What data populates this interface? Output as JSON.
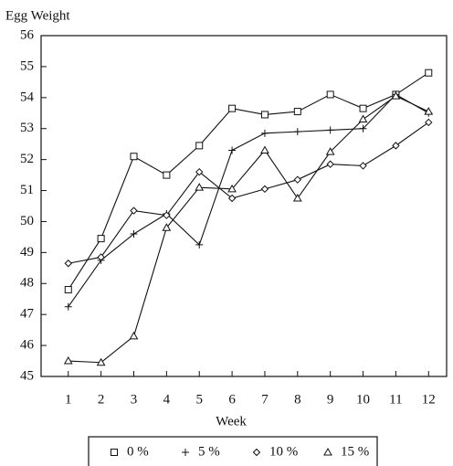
{
  "chart_data": {
    "type": "line",
    "y_label": "Egg Weight",
    "x_label": "Week",
    "x": [
      1,
      2,
      3,
      4,
      5,
      6,
      7,
      8,
      9,
      10,
      11,
      12
    ],
    "xlim": [
      0.17,
      12.55
    ],
    "xticks": [
      1,
      2,
      3,
      4,
      5,
      6,
      7,
      8,
      9,
      10,
      11,
      12
    ],
    "ylim": [
      45,
      56
    ],
    "yticks": [
      45,
      46,
      47,
      48,
      49,
      50,
      51,
      52,
      53,
      54,
      55,
      56
    ],
    "series": [
      {
        "name": "0 %",
        "color": "#111111",
        "marker": "square",
        "values": [
          47.8,
          49.45,
          52.1,
          51.5,
          52.45,
          53.65,
          53.45,
          53.55,
          54.1,
          53.65,
          54.1,
          54.8
        ]
      },
      {
        "name": "5 %",
        "color": "#111111",
        "marker": "plus",
        "values": [
          47.25,
          48.75,
          49.6,
          50.25,
          49.25,
          52.3,
          52.85,
          52.9,
          52.95,
          53.0,
          54.1,
          53.5
        ]
      },
      {
        "name": "10 %",
        "color": "#111111",
        "marker": "diamond",
        "values": [
          48.65,
          48.85,
          50.35,
          50.2,
          51.6,
          50.75,
          51.05,
          51.35,
          51.85,
          51.8,
          52.45,
          53.2
        ]
      },
      {
        "name": "15 %",
        "color": "#111111",
        "marker": "triangle",
        "values": [
          45.5,
          45.45,
          46.3,
          49.8,
          51.1,
          51.05,
          52.3,
          50.75,
          52.25,
          53.3,
          54.05,
          53.55
        ]
      }
    ]
  }
}
